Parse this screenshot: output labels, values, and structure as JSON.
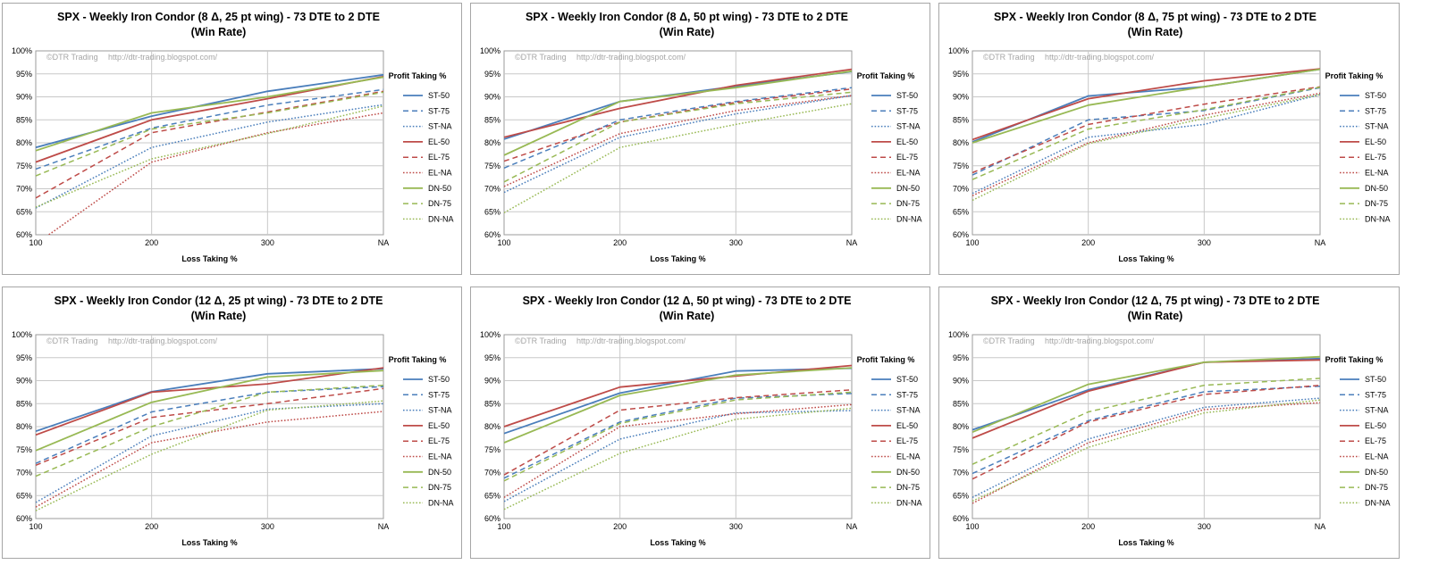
{
  "watermark": {
    "left": "©DTR Trading",
    "right": "http://dtr-trading.blogspot.com/"
  },
  "legend_title": "Profit Taking %",
  "series_style": [
    {
      "name": "ST-50",
      "color": "#4a7ebb",
      "dash": "solid"
    },
    {
      "name": "ST-75",
      "color": "#4a7ebb",
      "dash": "dashed"
    },
    {
      "name": "ST-NA",
      "color": "#4a7ebb",
      "dash": "dotted"
    },
    {
      "name": "EL-50",
      "color": "#be4b48",
      "dash": "solid"
    },
    {
      "name": "EL-75",
      "color": "#be4b48",
      "dash": "dashed"
    },
    {
      "name": "EL-NA",
      "color": "#be4b48",
      "dash": "dotted"
    },
    {
      "name": "DN-50",
      "color": "#98b954",
      "dash": "solid"
    },
    {
      "name": "DN-75",
      "color": "#98b954",
      "dash": "dashed"
    },
    {
      "name": "DN-NA",
      "color": "#98b954",
      "dash": "dotted"
    }
  ],
  "chart_data": [
    {
      "type": "line",
      "title": [
        "SPX - Weekly Iron Condor (8 Δ, 25 pt wing) - 73 DTE to 2 DTE",
        "(Win Rate)"
      ],
      "xlabel": "Loss Taking %",
      "ylabel": "",
      "categories": [
        "100",
        "200",
        "300",
        "NA"
      ],
      "y_ticks": [
        "60%",
        "65%",
        "70%",
        "75%",
        "80%",
        "85%",
        "90%",
        "95%",
        "100%"
      ],
      "ylim": [
        60,
        100
      ],
      "legend_position": "right",
      "grid": true,
      "series": [
        {
          "name": "ST-50",
          "values": [
            79,
            85.8,
            91.2,
            94.8
          ]
        },
        {
          "name": "ST-75",
          "values": [
            74.3,
            83.2,
            88.2,
            91.6
          ]
        },
        {
          "name": "ST-NA",
          "values": [
            65.8,
            79,
            84.5,
            88.3
          ]
        },
        {
          "name": "EL-50",
          "values": [
            75.8,
            85,
            89.6,
            94.4
          ]
        },
        {
          "name": "EL-75",
          "values": [
            68,
            82.2,
            86.7,
            91.2
          ]
        },
        {
          "name": "EL-NA",
          "values": [
            58,
            75.8,
            82.2,
            86.5
          ]
        },
        {
          "name": "DN-50",
          "values": [
            78.3,
            86.5,
            90,
            94.3
          ]
        },
        {
          "name": "DN-75",
          "values": [
            72.8,
            83,
            86.5,
            91
          ]
        },
        {
          "name": "DN-NA",
          "values": [
            66,
            76.5,
            82,
            88
          ]
        }
      ]
    },
    {
      "type": "line",
      "title": [
        "SPX - Weekly Iron Condor (8 Δ, 50 pt wing) - 73 DTE to 2 DTE",
        "(Win Rate)"
      ],
      "xlabel": "Loss Taking %",
      "ylabel": "",
      "categories": [
        "100",
        "200",
        "300",
        "NA"
      ],
      "y_ticks": [
        "60%",
        "65%",
        "70%",
        "75%",
        "80%",
        "85%",
        "90%",
        "95%",
        "100%"
      ],
      "ylim": [
        60,
        100
      ],
      "legend_position": "right",
      "grid": true,
      "series": [
        {
          "name": "ST-50",
          "values": [
            80.8,
            89,
            92.3,
            95.5
          ]
        },
        {
          "name": "ST-75",
          "values": [
            74.5,
            85,
            89,
            92
          ]
        },
        {
          "name": "ST-NA",
          "values": [
            69.2,
            81.2,
            86.3,
            90.3
          ]
        },
        {
          "name": "EL-50",
          "values": [
            81.2,
            87.5,
            92.5,
            96
          ]
        },
        {
          "name": "EL-75",
          "values": [
            76,
            84.5,
            88.8,
            91.7
          ]
        },
        {
          "name": "EL-NA",
          "values": [
            70.5,
            82,
            87,
            90.3
          ]
        },
        {
          "name": "DN-50",
          "values": [
            77.3,
            89,
            92,
            95.6
          ]
        },
        {
          "name": "DN-75",
          "values": [
            71.5,
            84.5,
            88.5,
            91
          ]
        },
        {
          "name": "DN-NA",
          "values": [
            64.8,
            79,
            84,
            88.5
          ]
        }
      ]
    },
    {
      "type": "line",
      "title": [
        "SPX - Weekly Iron Condor (8 Δ, 75 pt wing) - 73 DTE to 2 DTE",
        "(Win Rate)"
      ],
      "xlabel": "Loss Taking %",
      "ylabel": "",
      "categories": [
        "100",
        "200",
        "300",
        "NA"
      ],
      "y_ticks": [
        "60%",
        "65%",
        "70%",
        "75%",
        "80%",
        "85%",
        "90%",
        "95%",
        "100%"
      ],
      "ylim": [
        60,
        100
      ],
      "legend_position": "right",
      "grid": true,
      "series": [
        {
          "name": "ST-50",
          "values": [
            80.2,
            90.2,
            92.2,
            96
          ]
        },
        {
          "name": "ST-75",
          "values": [
            73,
            85,
            87,
            92
          ]
        },
        {
          "name": "ST-NA",
          "values": [
            69,
            81.2,
            84,
            90.5
          ]
        },
        {
          "name": "EL-50",
          "values": [
            80.7,
            89.6,
            93.5,
            96.1
          ]
        },
        {
          "name": "EL-75",
          "values": [
            73.5,
            84,
            88.4,
            92.2
          ]
        },
        {
          "name": "EL-NA",
          "values": [
            68.5,
            80,
            86,
            90.8
          ]
        },
        {
          "name": "DN-50",
          "values": [
            80,
            88.2,
            92.2,
            96
          ]
        },
        {
          "name": "DN-75",
          "values": [
            72,
            83,
            87.2,
            92.1
          ]
        },
        {
          "name": "DN-NA",
          "values": [
            67.5,
            79.8,
            85.3,
            90.5
          ]
        }
      ]
    },
    {
      "type": "line",
      "title": [
        "SPX - Weekly Iron Condor (12 Δ, 25 pt wing) - 73 DTE to 2 DTE",
        "(Win Rate)"
      ],
      "xlabel": "Loss Taking %",
      "ylabel": "",
      "categories": [
        "100",
        "200",
        "300",
        "NA"
      ],
      "y_ticks": [
        "60%",
        "65%",
        "70%",
        "75%",
        "80%",
        "85%",
        "90%",
        "95%",
        "100%"
      ],
      "ylim": [
        60,
        100
      ],
      "legend_position": "right",
      "grid": true,
      "series": [
        {
          "name": "ST-50",
          "values": [
            79,
            87.6,
            91.5,
            92.6
          ]
        },
        {
          "name": "ST-75",
          "values": [
            72,
            83.2,
            87.5,
            88.7
          ]
        },
        {
          "name": "ST-NA",
          "values": [
            63.5,
            78,
            83.8,
            85
          ]
        },
        {
          "name": "EL-50",
          "values": [
            78.2,
            87.5,
            89.3,
            92.8
          ]
        },
        {
          "name": "EL-75",
          "values": [
            71.6,
            82,
            85,
            88.3
          ]
        },
        {
          "name": "EL-NA",
          "values": [
            62.5,
            76.5,
            81,
            83.3
          ]
        },
        {
          "name": "DN-50",
          "values": [
            74.8,
            85.3,
            90.8,
            92.2
          ]
        },
        {
          "name": "DN-75",
          "values": [
            69.2,
            80,
            87.5,
            89
          ]
        },
        {
          "name": "DN-NA",
          "values": [
            61.7,
            74,
            83.6,
            85.6
          ]
        }
      ]
    },
    {
      "type": "line",
      "title": [
        "SPX - Weekly Iron Condor (12 Δ, 50 pt wing) - 73 DTE to 2 DTE",
        "(Win Rate)"
      ],
      "xlabel": "Loss Taking %",
      "ylabel": "",
      "categories": [
        "100",
        "200",
        "300",
        "NA"
      ],
      "y_ticks": [
        "60%",
        "65%",
        "70%",
        "75%",
        "80%",
        "85%",
        "90%",
        "95%",
        "100%"
      ],
      "ylim": [
        60,
        100
      ],
      "legend_position": "right",
      "grid": true,
      "series": [
        {
          "name": "ST-50",
          "values": [
            78.5,
            87.3,
            92.1,
            92.7
          ]
        },
        {
          "name": "ST-75",
          "values": [
            68.8,
            81,
            86.2,
            87.2
          ]
        },
        {
          "name": "ST-NA",
          "values": [
            63.7,
            77.3,
            83,
            83.5
          ]
        },
        {
          "name": "EL-50",
          "values": [
            80,
            88.6,
            91,
            93.3
          ]
        },
        {
          "name": "EL-75",
          "values": [
            69.5,
            83.6,
            86.3,
            88
          ]
        },
        {
          "name": "EL-NA",
          "values": [
            64.6,
            80,
            82.8,
            84.8
          ]
        },
        {
          "name": "DN-50",
          "values": [
            76.5,
            86.8,
            91.2,
            92.8
          ]
        },
        {
          "name": "DN-75",
          "values": [
            68.2,
            80.7,
            85.8,
            87.5
          ]
        },
        {
          "name": "DN-NA",
          "values": [
            62,
            74.2,
            81.6,
            84
          ]
        }
      ]
    },
    {
      "type": "line",
      "title": [
        "SPX - Weekly Iron Condor (12 Δ, 75 pt wing) - 73 DTE to 2 DTE",
        "(Win Rate)"
      ],
      "xlabel": "Loss Taking %",
      "ylabel": "",
      "categories": [
        "100",
        "200",
        "300",
        "NA"
      ],
      "y_ticks": [
        "60%",
        "65%",
        "70%",
        "75%",
        "80%",
        "85%",
        "90%",
        "95%",
        "100%"
      ],
      "ylim": [
        60,
        100
      ],
      "legend_position": "right",
      "grid": true,
      "series": [
        {
          "name": "ST-50",
          "values": [
            79.3,
            88,
            94,
            94.8
          ]
        },
        {
          "name": "ST-75",
          "values": [
            69.8,
            81.3,
            87.6,
            88.8
          ]
        },
        {
          "name": "ST-NA",
          "values": [
            64.6,
            77.3,
            84.2,
            86.2
          ]
        },
        {
          "name": "EL-50",
          "values": [
            77.5,
            87.7,
            94,
            94.5
          ]
        },
        {
          "name": "EL-75",
          "values": [
            68.6,
            81,
            87,
            89
          ]
        },
        {
          "name": "EL-NA",
          "values": [
            63.3,
            76.5,
            83.7,
            85.2
          ]
        },
        {
          "name": "DN-50",
          "values": [
            78.8,
            89.2,
            94,
            95.2
          ]
        },
        {
          "name": "DN-75",
          "values": [
            71.8,
            83.2,
            89,
            90.5
          ]
        },
        {
          "name": "DN-NA",
          "values": [
            63.8,
            75.5,
            83,
            85.8
          ]
        }
      ]
    }
  ]
}
